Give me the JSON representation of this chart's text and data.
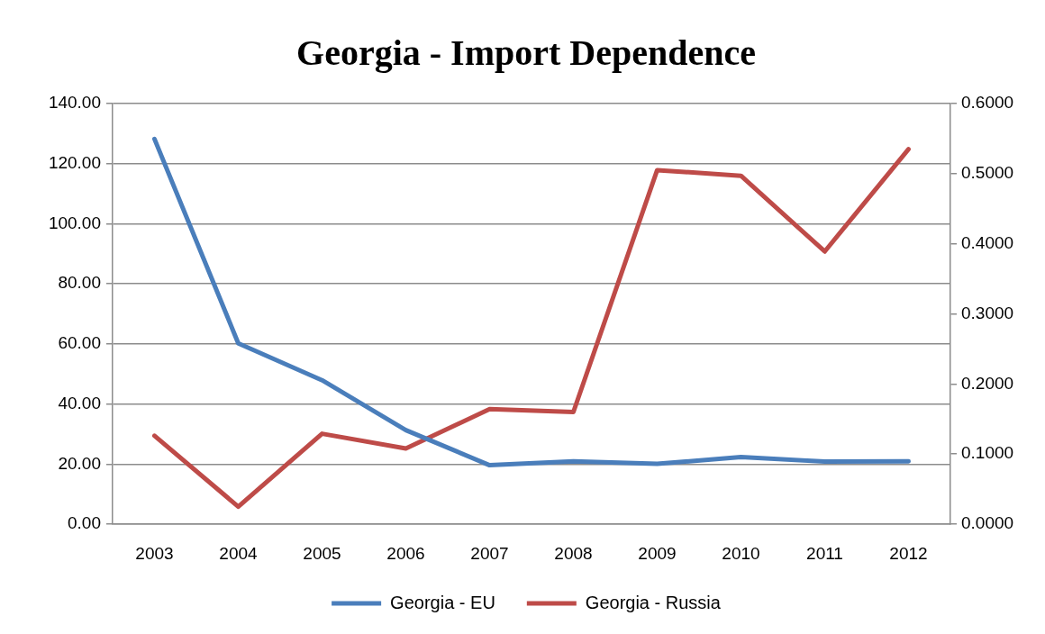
{
  "chart_data": {
    "type": "line",
    "title": "Georgia - Import Dependence",
    "categories": [
      "2003",
      "2004",
      "2005",
      "2006",
      "2007",
      "2008",
      "2009",
      "2010",
      "2011",
      "2012"
    ],
    "series": [
      {
        "name": "Georgia - EU",
        "color": "#4a7ebb",
        "values": [
          128.2,
          60.2,
          47.9,
          31.3,
          19.6,
          20.9,
          20.1,
          22.3,
          20.8,
          20.9
        ]
      },
      {
        "name": "Georgia - Russia",
        "color": "#be4b48",
        "axis": "y2",
        "values": [
          0.126,
          0.025,
          0.129,
          0.108,
          0.164,
          0.16,
          0.505,
          0.497,
          0.389,
          0.535
        ]
      }
    ],
    "ylim": [
      0,
      140
    ],
    "yticks": [
      {
        "value": 0,
        "label": "0.00"
      },
      {
        "value": 20,
        "label": "20.00"
      },
      {
        "value": 40,
        "label": "40.00"
      },
      {
        "value": 60,
        "label": "60.00"
      },
      {
        "value": 80,
        "label": "80.00"
      },
      {
        "value": 100,
        "label": "100.00"
      },
      {
        "value": 120,
        "label": "120.00"
      },
      {
        "value": 140,
        "label": "140.00"
      }
    ],
    "y2lim": [
      0,
      0.6
    ],
    "y2ticks": [
      {
        "value": 0,
        "label": "0.0000"
      },
      {
        "value": 0.1,
        "label": "0.1000"
      },
      {
        "value": 0.2,
        "label": "0.2000"
      },
      {
        "value": 0.3,
        "label": "0.3000"
      },
      {
        "value": 0.4,
        "label": "0.4000"
      },
      {
        "value": 0.5,
        "label": "0.5000"
      },
      {
        "value": 0.6,
        "label": "0.6000"
      }
    ],
    "grid": "y",
    "legend": "bottom",
    "marker": "none",
    "line_style": "solid"
  }
}
